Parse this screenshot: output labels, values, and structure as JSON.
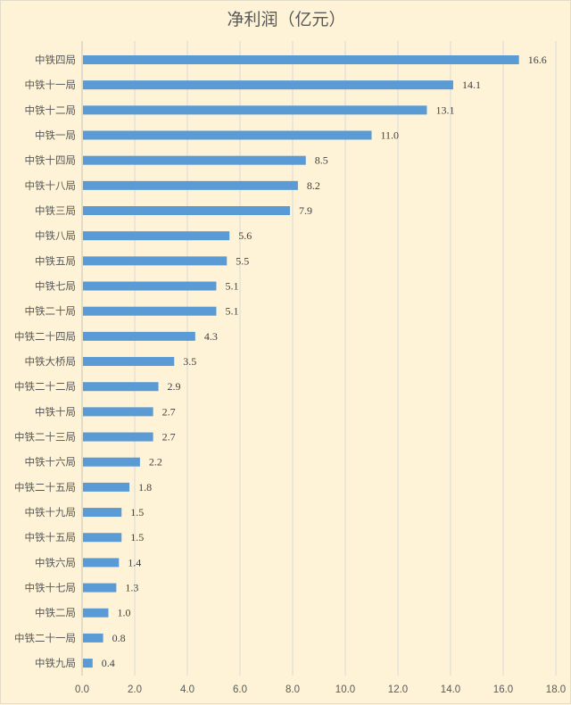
{
  "chart_data": {
    "type": "bar",
    "orientation": "horizontal",
    "title": "净利润（亿元）",
    "categories": [
      "中铁四局",
      "中铁十一局",
      "中铁十二局",
      "中铁一局",
      "中铁十四局",
      "中铁十八局",
      "中铁三局",
      "中铁八局",
      "中铁五局",
      "中铁七局",
      "中铁二十局",
      "中铁二十四局",
      "中铁大桥局",
      "中铁二十二局",
      "中铁十局",
      "中铁二十三局",
      "中铁十六局",
      "中铁二十五局",
      "中铁十九局",
      "中铁十五局",
      "中铁六局",
      "中铁十七局",
      "中铁二局",
      "中铁二十一局",
      "中铁九局"
    ],
    "values": [
      16.6,
      14.1,
      13.1,
      11.0,
      8.5,
      8.2,
      7.9,
      5.6,
      5.5,
      5.1,
      5.1,
      4.3,
      3.5,
      2.9,
      2.7,
      2.7,
      2.2,
      1.8,
      1.5,
      1.5,
      1.4,
      1.3,
      1.0,
      0.8,
      0.4
    ],
    "xlim": [
      0,
      18
    ],
    "xticks": [
      "0.0",
      "2.0",
      "4.0",
      "6.0",
      "8.0",
      "10.0",
      "12.0",
      "14.0",
      "16.0",
      "18.0"
    ],
    "grid": true,
    "bar_color": "#5B9BD5",
    "background": "#FEF3D6",
    "data_labels": true
  }
}
